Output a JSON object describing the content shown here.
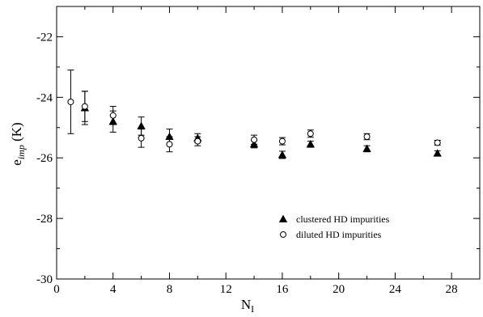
{
  "chart_data": {
    "type": "scatter",
    "title": "",
    "xlabel": {
      "main": "N",
      "sub": "I"
    },
    "ylabel": {
      "main": "e",
      "sub": "imp",
      "unit": " (K)"
    },
    "xlim": [
      0,
      30
    ],
    "ylim": [
      -30,
      -21
    ],
    "xticks": [
      0,
      4,
      8,
      12,
      16,
      20,
      24,
      28
    ],
    "yticks": [
      -30,
      -28,
      -26,
      -24,
      -22
    ],
    "xtick_labels": [
      "0",
      "4",
      "8",
      "12",
      "16",
      "20",
      "24",
      "28"
    ],
    "ytick_labels": [
      "-30",
      "-28",
      "-26",
      "-24",
      "-22"
    ],
    "grid": false,
    "legend": "bottom-right",
    "series": [
      {
        "name": "clustered HD impurities",
        "marker": "filled-triangle",
        "color": "#000000",
        "points": [
          {
            "x": 2,
            "y": -24.35,
            "err": 0.55
          },
          {
            "x": 4,
            "y": -24.8,
            "err": 0.35
          },
          {
            "x": 6,
            "y": -24.95,
            "err": 0.3
          },
          {
            "x": 8,
            "y": -25.3,
            "err": 0.25
          },
          {
            "x": 10,
            "y": -25.35,
            "err": 0.15
          },
          {
            "x": 14,
            "y": -25.55,
            "err": 0.12
          },
          {
            "x": 16,
            "y": -25.9,
            "err": 0.12
          },
          {
            "x": 18,
            "y": -25.55,
            "err": 0.1
          },
          {
            "x": 22,
            "y": -25.7,
            "err": 0.1
          },
          {
            "x": 27,
            "y": -25.85,
            "err": 0.08
          }
        ]
      },
      {
        "name": "diluted HD impurities",
        "marker": "open-circle",
        "color": "#000000",
        "points": [
          {
            "x": 1,
            "y": -24.15,
            "err": 1.05
          },
          {
            "x": 2,
            "y": -24.3,
            "err": 0.5
          },
          {
            "x": 4,
            "y": -24.6,
            "err": 0.3
          },
          {
            "x": 6,
            "y": -25.35,
            "err": 0.3
          },
          {
            "x": 8,
            "y": -25.55,
            "err": 0.25
          },
          {
            "x": 10,
            "y": -25.45,
            "err": 0.15
          },
          {
            "x": 14,
            "y": -25.4,
            "err": 0.15
          },
          {
            "x": 16,
            "y": -25.45,
            "err": 0.12
          },
          {
            "x": 18,
            "y": -25.2,
            "err": 0.12
          },
          {
            "x": 22,
            "y": -25.3,
            "err": 0.1
          },
          {
            "x": 27,
            "y": -25.5,
            "err": 0.08
          }
        ]
      }
    ]
  }
}
